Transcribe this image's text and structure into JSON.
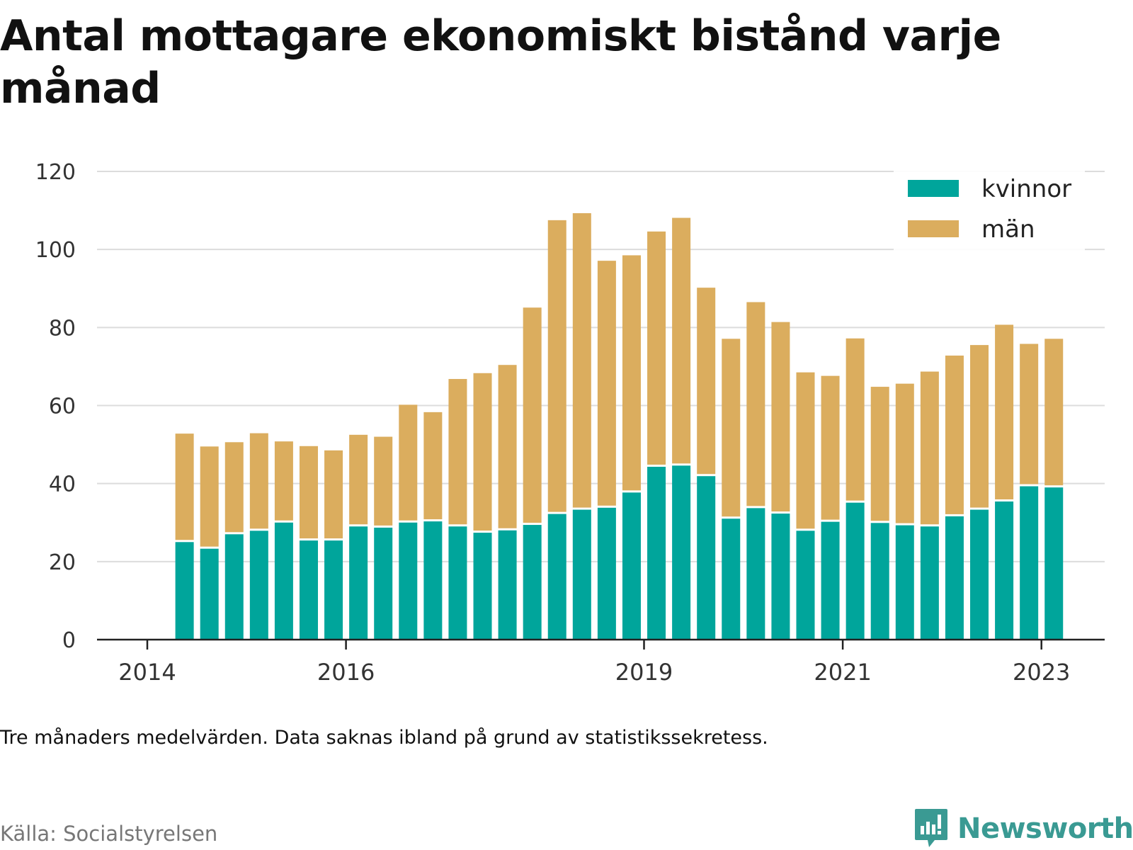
{
  "title": "Antal mottagare ekonomiskt bistånd varje månad",
  "note": "Tre månaders medelvärden. Data saknas ibland på grund av statistikssekretess.",
  "source": "Källa: Socialstyrelsen",
  "brand": {
    "name": "Newsworthy",
    "icon": "bar-chart-logo-icon",
    "color": "#3a9a93"
  },
  "chart_data": {
    "type": "bar",
    "stacked": true,
    "title": "Antal mottagare ekonomiskt bistånd varje månad",
    "xlabel": "",
    "ylabel": "",
    "ylim": [
      0,
      120
    ],
    "yticks": [
      0,
      20,
      40,
      60,
      80,
      100,
      120
    ],
    "xticks": [
      "2014",
      "2016",
      "2019",
      "2021",
      "2023"
    ],
    "grid": true,
    "legend_position": "top-right",
    "periods": [
      "2014-Q2",
      "2014-Q3",
      "2014-Q4",
      "2015-Q1",
      "2015-Q2",
      "2015-Q3",
      "2015-Q4",
      "2016-Q1",
      "2016-Q2",
      "2016-Q3",
      "2016-Q4",
      "2017-Q1",
      "2017-Q2",
      "2017-Q3",
      "2017-Q4",
      "2018-Q1",
      "2018-Q2",
      "2018-Q3",
      "2018-Q4",
      "2019-Q1",
      "2019-Q2",
      "2019-Q3",
      "2019-Q4",
      "2020-Q1",
      "2020-Q2",
      "2020-Q3",
      "2020-Q4",
      "2021-Q1",
      "2021-Q2",
      "2021-Q3",
      "2021-Q4",
      "2022-Q1",
      "2022-Q2",
      "2022-Q3",
      "2022-Q4",
      "2023-Q1"
    ],
    "series": [
      {
        "name": "kvinnor",
        "color": "#00a59b",
        "values": [
          25.0,
          23.3,
          27.0,
          27.9,
          30.0,
          25.4,
          25.4,
          29.0,
          28.7,
          30.0,
          30.3,
          29.0,
          27.4,
          28.0,
          29.4,
          32.2,
          33.3,
          33.8,
          37.7,
          44.3,
          44.6,
          41.9,
          31.0,
          33.7,
          32.3,
          27.9,
          30.2,
          35.1,
          29.9,
          29.3,
          29.0,
          31.6,
          33.3,
          35.4,
          39.3,
          39.0
        ]
      },
      {
        "name": "män",
        "color": "#dbad5e",
        "values": [
          27.8,
          26.2,
          23.6,
          25.0,
          20.8,
          24.2,
          23.1,
          23.5,
          23.3,
          30.2,
          28.0,
          37.8,
          40.9,
          42.4,
          55.7,
          75.3,
          76.0,
          63.3,
          60.8,
          60.3,
          63.5,
          48.3,
          46.1,
          52.8,
          49.1,
          40.6,
          37.4,
          42.1,
          34.9,
          36.3,
          39.7,
          41.2,
          42.2,
          45.3,
          36.5,
          38.1
        ]
      }
    ]
  }
}
